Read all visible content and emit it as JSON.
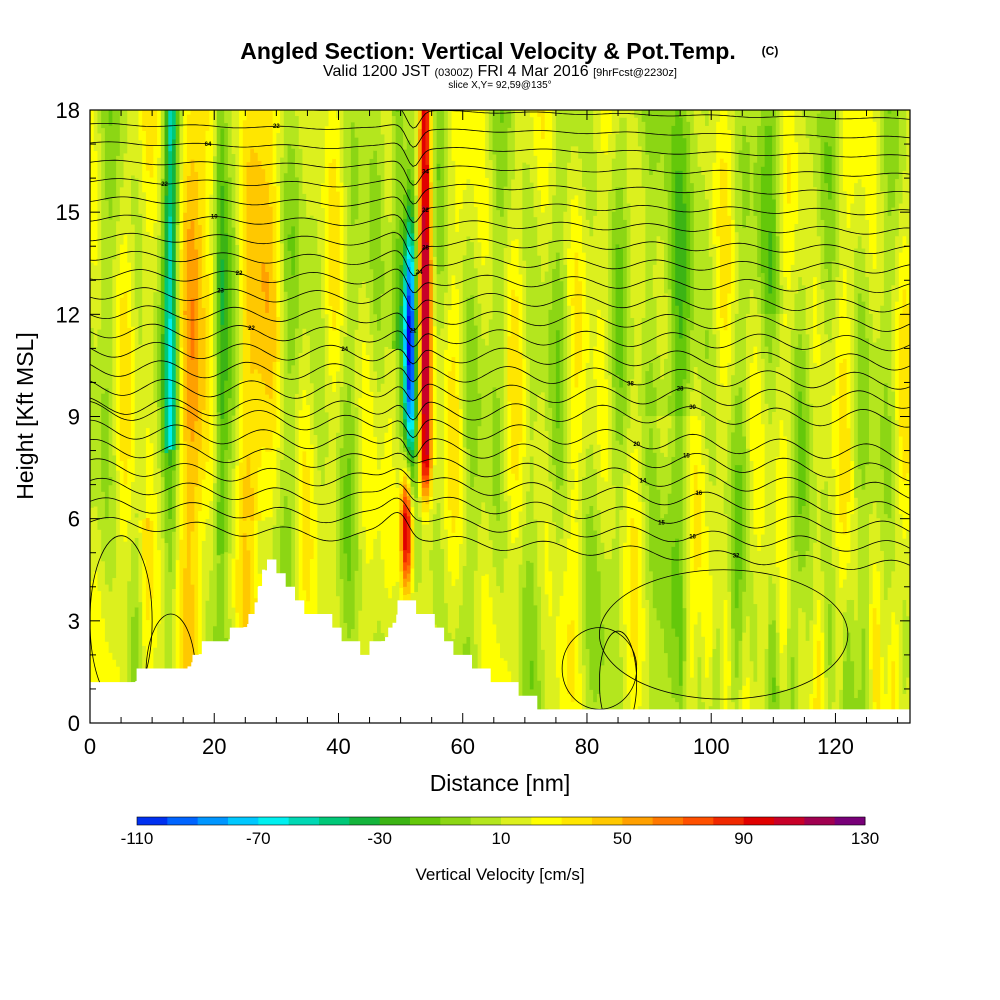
{
  "header": {
    "title_main": "Angled Section: Vertical Velocity & Pot.Temp.",
    "title_units": "(C)",
    "valid_prefix": "Valid 1200 JST",
    "valid_utc": "(0300Z)",
    "valid_date": "FRI 4 Mar 2016",
    "valid_fcst": "[9hrFcst@2230z]",
    "slice_info": "slice X,Y= 92,59@135°"
  },
  "chart_data": {
    "type": "heatmap",
    "title": "Angled Section: Vertical Velocity & Pot.Temp. (C)",
    "xlabel": "Distance [nm]",
    "ylabel": "Height [Kft MSL]",
    "xlim": [
      0,
      132
    ],
    "ylim": [
      0,
      18
    ],
    "x_ticks": [
      "0",
      "20",
      "40",
      "60",
      "80",
      "100",
      "120"
    ],
    "y_ticks": [
      "0",
      "3",
      "6",
      "9",
      "12",
      "15",
      "18"
    ],
    "colorbar": {
      "title": "Vertical Velocity [cm/s]",
      "labels": [
        "-110",
        "-70",
        "-30",
        "10",
        "50",
        "90",
        "130"
      ],
      "min": -120,
      "step": 10,
      "colors": [
        "#0000e8",
        "#0030f0",
        "#0064ff",
        "#0096ff",
        "#00c8ff",
        "#00f0f0",
        "#00d8b4",
        "#00c878",
        "#14b43c",
        "#3cb414",
        "#64c80a",
        "#8cd614",
        "#b4e61e",
        "#dcf01e",
        "#ffff00",
        "#ffe600",
        "#ffc800",
        "#ffa000",
        "#ff7800",
        "#ff5000",
        "#f02800",
        "#e00000",
        "#c80028",
        "#a00050",
        "#780078",
        "#5a0096"
      ]
    },
    "contour_variable": "Pot.Temp. (C)",
    "contour_labels": [
      "-20",
      "28",
      "31",
      "22",
      "64",
      "34",
      "22",
      "22",
      "19",
      "28",
      "24",
      "22",
      "23",
      "21",
      "22",
      "24",
      "38",
      "28",
      "30",
      "20",
      "15",
      "14",
      "16",
      "15",
      "16",
      "32"
    ],
    "features": {
      "terrain_profile": [
        {
          "x": 0,
          "h": 1.0
        },
        {
          "x": 5,
          "h": 1.3
        },
        {
          "x": 10,
          "h": 1.6
        },
        {
          "x": 14,
          "h": 1.5
        },
        {
          "x": 18,
          "h": 2.3
        },
        {
          "x": 22,
          "h": 2.6
        },
        {
          "x": 26,
          "h": 3.2
        },
        {
          "x": 28,
          "h": 4.8
        },
        {
          "x": 31,
          "h": 4.2
        },
        {
          "x": 34,
          "h": 3.0
        },
        {
          "x": 37,
          "h": 3.2
        },
        {
          "x": 40,
          "h": 2.6
        },
        {
          "x": 44,
          "h": 2.0
        },
        {
          "x": 48,
          "h": 2.8
        },
        {
          "x": 50,
          "h": 3.6
        },
        {
          "x": 54,
          "h": 3.0
        },
        {
          "x": 58,
          "h": 2.0
        },
        {
          "x": 62,
          "h": 1.7
        },
        {
          "x": 66,
          "h": 1.2
        },
        {
          "x": 70,
          "h": 0.7
        },
        {
          "x": 74,
          "h": 0.35
        },
        {
          "x": 132,
          "h": 0.35
        }
      ],
      "updraft_max_cm_s": 110,
      "updraft_center": {
        "x": 51,
        "h": 5.8
      },
      "downdraft_min_cm_s": -110,
      "downdraft_center": {
        "x": 51.5,
        "h": 11.5
      }
    }
  }
}
